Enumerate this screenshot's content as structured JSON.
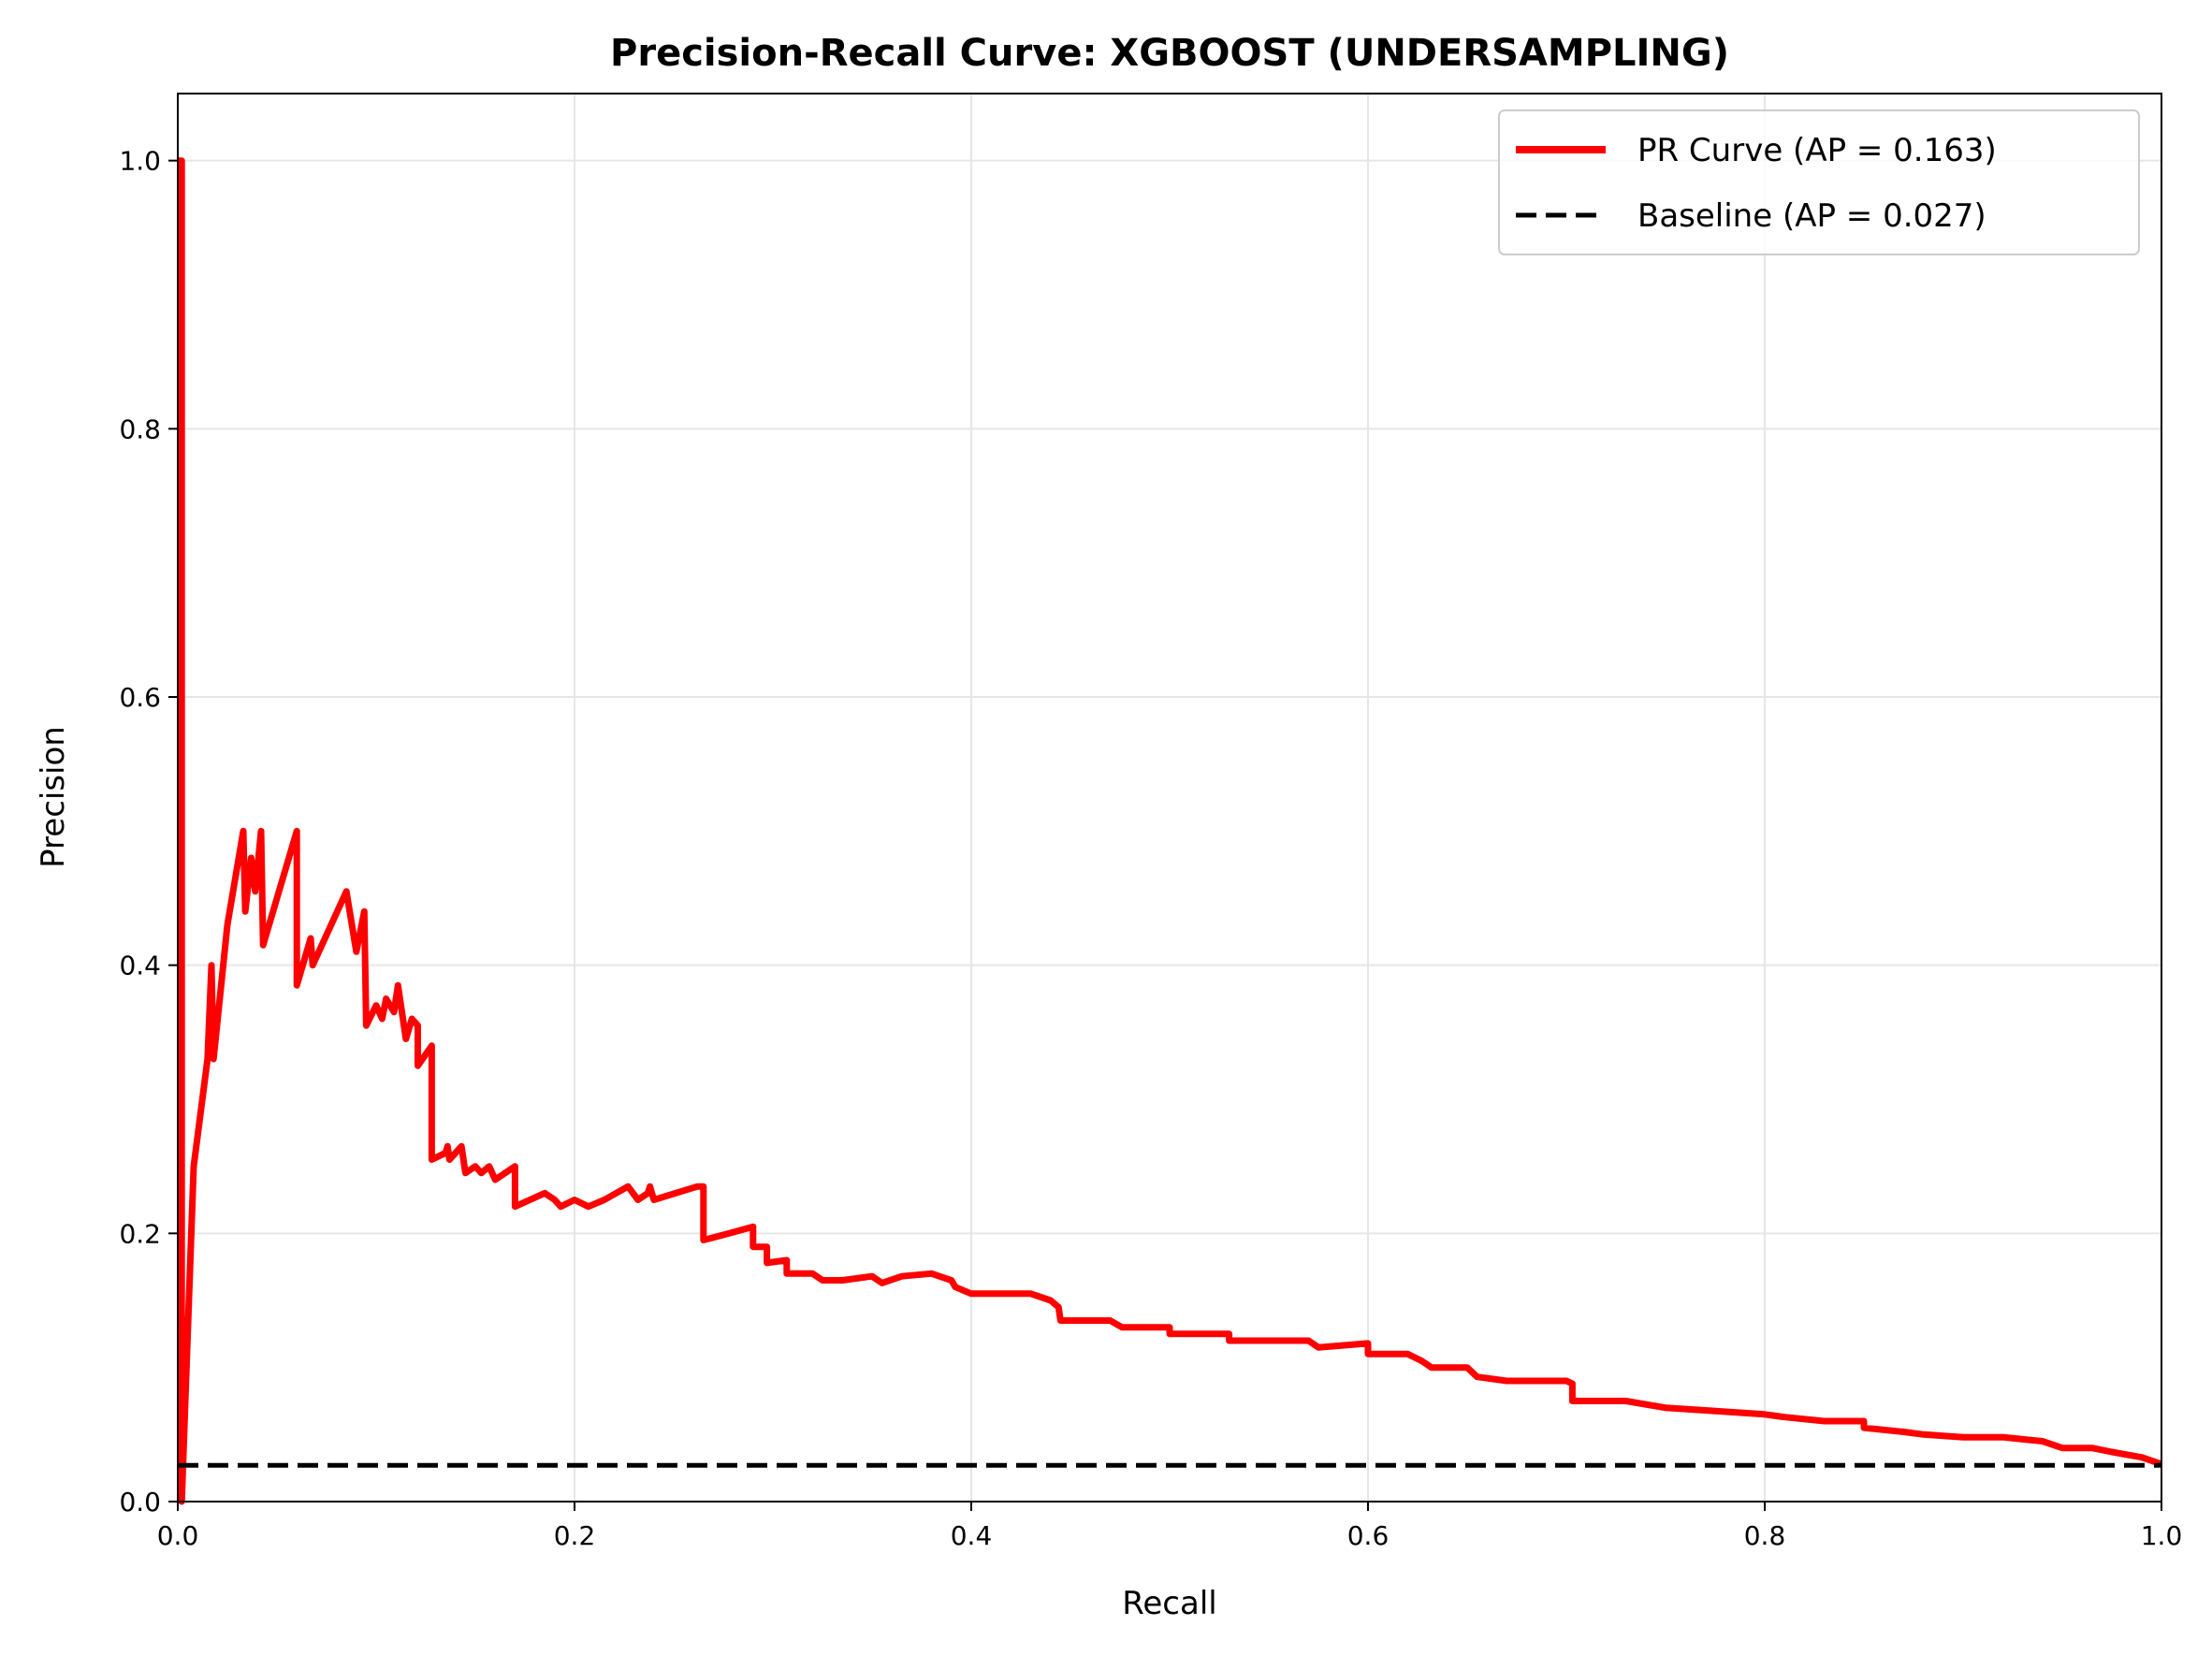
{
  "chart_data": {
    "type": "line",
    "title": "Precision-Recall Curve: XGBOOST (UNDERSAMPLING)",
    "xlabel": "Recall",
    "ylabel": "Precision",
    "xlim": [
      0.0,
      1.0
    ],
    "ylim": [
      0.0,
      1.05
    ],
    "xticks": [
      "0.0",
      "0.2",
      "0.4",
      "0.6",
      "0.8",
      "1.0"
    ],
    "yticks": [
      "0.0",
      "0.2",
      "0.4",
      "0.6",
      "0.8",
      "1.0"
    ],
    "grid": true,
    "legend_position": "top-right",
    "series": [
      {
        "name": "PR Curve (AP = 0.163)",
        "color": "#ff0000",
        "style": "solid",
        "points": [
          [
            0.0,
            1.0
          ],
          [
            0.002,
            1.0
          ],
          [
            0.002,
            0.0
          ],
          [
            0.008,
            0.25
          ],
          [
            0.015,
            0.33
          ],
          [
            0.017,
            0.4
          ],
          [
            0.018,
            0.33
          ],
          [
            0.025,
            0.43
          ],
          [
            0.033,
            0.5
          ],
          [
            0.034,
            0.44
          ],
          [
            0.037,
            0.48
          ],
          [
            0.039,
            0.455
          ],
          [
            0.042,
            0.5
          ],
          [
            0.043,
            0.415
          ],
          [
            0.05,
            0.45
          ],
          [
            0.06,
            0.5
          ],
          [
            0.06,
            0.385
          ],
          [
            0.067,
            0.42
          ],
          [
            0.068,
            0.4
          ],
          [
            0.085,
            0.455
          ],
          [
            0.09,
            0.41
          ],
          [
            0.094,
            0.44
          ],
          [
            0.095,
            0.355
          ],
          [
            0.1,
            0.37
          ],
          [
            0.103,
            0.36
          ],
          [
            0.105,
            0.375
          ],
          [
            0.109,
            0.365
          ],
          [
            0.111,
            0.385
          ],
          [
            0.115,
            0.345
          ],
          [
            0.118,
            0.36
          ],
          [
            0.121,
            0.355
          ],
          [
            0.121,
            0.325
          ],
          [
            0.128,
            0.34
          ],
          [
            0.128,
            0.255
          ],
          [
            0.135,
            0.26
          ],
          [
            0.136,
            0.265
          ],
          [
            0.137,
            0.255
          ],
          [
            0.143,
            0.265
          ],
          [
            0.145,
            0.245
          ],
          [
            0.15,
            0.25
          ],
          [
            0.153,
            0.245
          ],
          [
            0.157,
            0.25
          ],
          [
            0.16,
            0.24
          ],
          [
            0.17,
            0.25
          ],
          [
            0.17,
            0.22
          ],
          [
            0.185,
            0.23
          ],
          [
            0.19,
            0.225
          ],
          [
            0.193,
            0.22
          ],
          [
            0.2,
            0.225
          ],
          [
            0.207,
            0.22
          ],
          [
            0.215,
            0.225
          ],
          [
            0.227,
            0.235
          ],
          [
            0.232,
            0.225
          ],
          [
            0.237,
            0.23
          ],
          [
            0.238,
            0.235
          ],
          [
            0.24,
            0.225
          ],
          [
            0.262,
            0.235
          ],
          [
            0.265,
            0.235
          ],
          [
            0.265,
            0.195
          ],
          [
            0.278,
            0.2
          ],
          [
            0.29,
            0.205
          ],
          [
            0.29,
            0.19
          ],
          [
            0.297,
            0.19
          ],
          [
            0.297,
            0.178
          ],
          [
            0.307,
            0.18
          ],
          [
            0.307,
            0.17
          ],
          [
            0.32,
            0.17
          ],
          [
            0.325,
            0.165
          ],
          [
            0.335,
            0.165
          ],
          [
            0.35,
            0.168
          ],
          [
            0.355,
            0.163
          ],
          [
            0.365,
            0.168
          ],
          [
            0.38,
            0.17
          ],
          [
            0.39,
            0.165
          ],
          [
            0.392,
            0.16
          ],
          [
            0.4,
            0.155
          ],
          [
            0.41,
            0.155
          ],
          [
            0.43,
            0.155
          ],
          [
            0.44,
            0.15
          ],
          [
            0.444,
            0.145
          ],
          [
            0.445,
            0.135
          ],
          [
            0.46,
            0.135
          ],
          [
            0.47,
            0.135
          ],
          [
            0.476,
            0.13
          ],
          [
            0.5,
            0.13
          ],
          [
            0.5,
            0.125
          ],
          [
            0.53,
            0.125
          ],
          [
            0.53,
            0.12
          ],
          [
            0.57,
            0.12
          ],
          [
            0.575,
            0.115
          ],
          [
            0.6,
            0.118
          ],
          [
            0.6,
            0.11
          ],
          [
            0.62,
            0.11
          ],
          [
            0.627,
            0.105
          ],
          [
            0.632,
            0.1
          ],
          [
            0.65,
            0.1
          ],
          [
            0.655,
            0.093
          ],
          [
            0.67,
            0.09
          ],
          [
            0.7,
            0.09
          ],
          [
            0.703,
            0.088
          ],
          [
            0.703,
            0.075
          ],
          [
            0.73,
            0.075
          ],
          [
            0.75,
            0.07
          ],
          [
            0.77,
            0.068
          ],
          [
            0.8,
            0.065
          ],
          [
            0.81,
            0.063
          ],
          [
            0.83,
            0.06
          ],
          [
            0.85,
            0.06
          ],
          [
            0.85,
            0.055
          ],
          [
            0.87,
            0.052
          ],
          [
            0.88,
            0.05
          ],
          [
            0.9,
            0.048
          ],
          [
            0.92,
            0.048
          ],
          [
            0.94,
            0.045
          ],
          [
            0.95,
            0.04
          ],
          [
            0.965,
            0.04
          ],
          [
            0.975,
            0.037
          ],
          [
            0.99,
            0.033
          ],
          [
            1.0,
            0.028
          ]
        ]
      },
      {
        "name": "Baseline (AP = 0.027)",
        "color": "#000000",
        "style": "dashed",
        "points": [
          [
            0.0,
            0.027
          ],
          [
            1.0,
            0.027
          ]
        ]
      }
    ]
  }
}
